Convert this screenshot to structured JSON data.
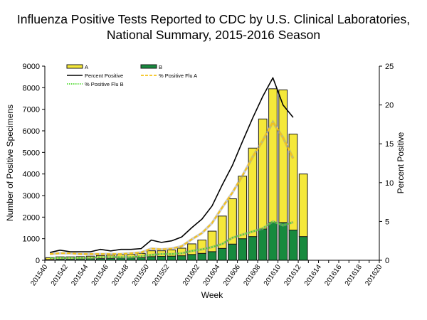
{
  "chart_data": {
    "type": "bar",
    "title_lines": [
      "Influenza Positive Tests Reported to CDC by U.S. Clinical Laboratories,",
      "National Summary, 2015-2016 Season"
    ],
    "xlabel": "Week",
    "ylabel": "Number of Positive Specimens",
    "y2label": "Percent Positive",
    "ylim": [
      0,
      9000
    ],
    "y2lim": [
      0,
      25
    ],
    "yticks": [
      0,
      1000,
      2000,
      3000,
      4000,
      5000,
      6000,
      7000,
      8000,
      9000
    ],
    "y2ticks": [
      0,
      5,
      10,
      15,
      20,
      25
    ],
    "weeks": [
      "201540",
      "201541",
      "201542",
      "201543",
      "201544",
      "201545",
      "201546",
      "201547",
      "201548",
      "201549",
      "201550",
      "201551",
      "201552",
      "201553",
      "201601",
      "201602",
      "201603",
      "201604",
      "201605",
      "201606",
      "201607",
      "201608",
      "201609",
      "201610",
      "201611",
      "201612",
      "201613",
      "201614",
      "201615",
      "201616",
      "201617",
      "201618",
      "201619",
      "201620"
    ],
    "xtick_labels": [
      "201540",
      "201542",
      "201544",
      "201546",
      "201548",
      "201550",
      "201552",
      "201602",
      "201604",
      "201606",
      "201608",
      "201610",
      "201612",
      "201614",
      "201616",
      "201618",
      "201620"
    ],
    "series": [
      {
        "name": "A",
        "kind": "bar",
        "color": "#f5e83a",
        "values": [
          90,
          110,
          110,
          110,
          120,
          140,
          150,
          170,
          170,
          200,
          270,
          260,
          290,
          350,
          490,
          620,
          950,
          1500,
          2100,
          2900,
          4100,
          5100,
          6200,
          6150,
          4450,
          2900
        ]
      },
      {
        "name": "B",
        "kind": "bar",
        "color": "#178a3e",
        "values": [
          30,
          50,
          50,
          60,
          70,
          80,
          90,
          100,
          110,
          120,
          170,
          180,
          190,
          210,
          270,
          320,
          400,
          550,
          750,
          1000,
          1100,
          1450,
          1750,
          1750,
          1400,
          1100
        ]
      },
      {
        "name": "Percent Positive",
        "kind": "line",
        "axis": "right",
        "color": "#000000",
        "dash": "solid",
        "values": [
          1.0,
          1.3,
          1.1,
          1.1,
          1.1,
          1.4,
          1.2,
          1.4,
          1.4,
          1.5,
          2.6,
          2.3,
          2.5,
          3.0,
          4.2,
          5.3,
          7.0,
          9.7,
          12.2,
          15.3,
          18.3,
          21.1,
          23.5,
          20.0,
          18.4
        ]
      },
      {
        "name": "% Positive Flu A",
        "kind": "line",
        "axis": "right",
        "color": "#f5c21b",
        "dash": "dashed",
        "values": [
          0.8,
          0.9,
          0.9,
          0.8,
          0.8,
          0.8,
          0.8,
          0.8,
          0.9,
          1.0,
          1.5,
          1.4,
          1.5,
          1.8,
          2.7,
          3.5,
          4.8,
          6.8,
          8.7,
          10.9,
          13.3,
          15.4,
          17.8,
          15.8,
          13.1
        ]
      },
      {
        "name": "% Positive Flu B",
        "kind": "line",
        "axis": "right",
        "color": "#4cd92b",
        "dash": "dotted",
        "values": [
          0.3,
          0.3,
          0.3,
          0.3,
          0.3,
          0.4,
          0.4,
          0.4,
          0.4,
          0.5,
          0.7,
          0.8,
          0.8,
          0.9,
          1.2,
          1.4,
          1.7,
          2.1,
          2.9,
          3.3,
          3.7,
          4.1,
          5.0,
          4.5,
          4.9
        ]
      }
    ],
    "legend": {
      "placement": "top-left",
      "entries": [
        "A",
        "B",
        "Percent Positive",
        "% Positive Flu A",
        "% Positive Flu B"
      ]
    },
    "grid": false
  }
}
